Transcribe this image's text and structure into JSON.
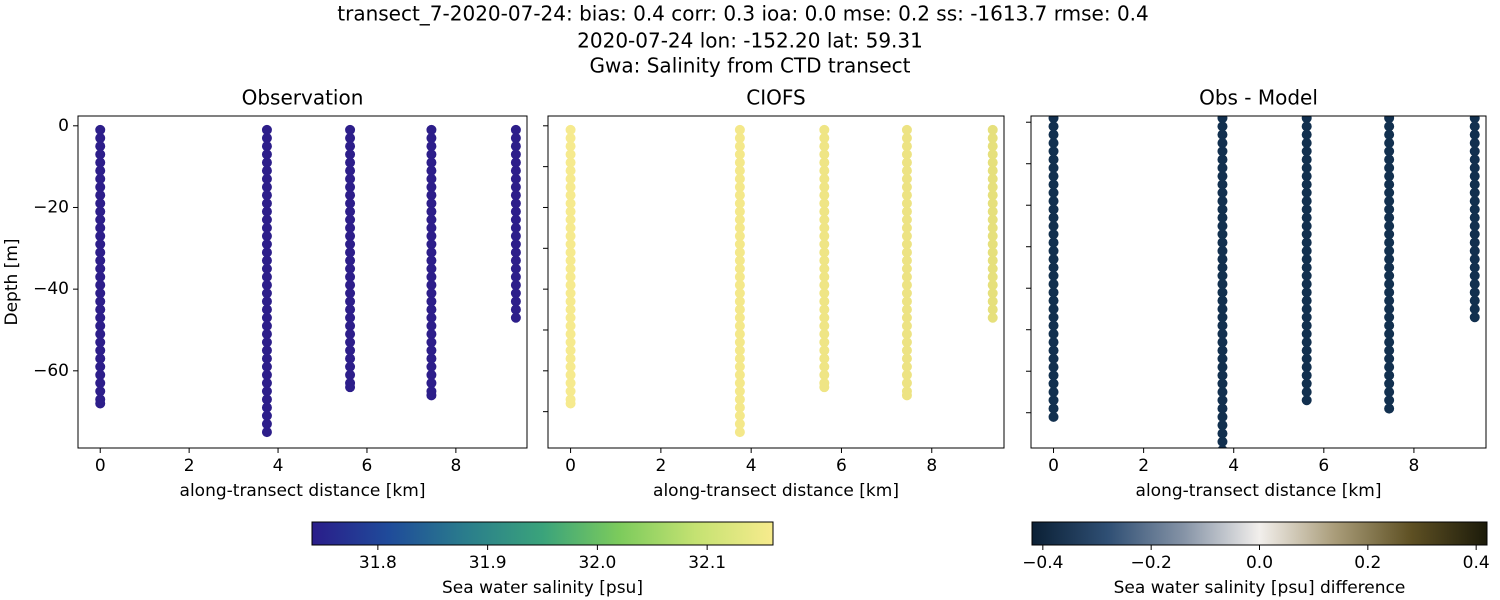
{
  "title": [
    "transect_7-2020-07-24: bias: 0.4  corr: 0.3  ioa: 0.0  mse: 0.2  ss: -1613.7  rmse: 0.4",
    "2020-07-24 lon: -152.20 lat: 59.31",
    "Gwa: Salinity from CTD transect"
  ],
  "chart_data": [
    {
      "type": "scatter",
      "title": "Observation",
      "xlabel": "along-transect distance [km]",
      "ylabel": "Depth [m]",
      "xlim": [
        -0.5,
        9.6
      ],
      "ylim": [
        -78.9,
        2.4
      ],
      "xticks": [
        0,
        2,
        4,
        6,
        8
      ],
      "yticks": [
        0,
        {
          "value": -20,
          "label": "−20"
        },
        {
          "value": -40,
          "label": "−40"
        },
        {
          "value": -60,
          "label": "−60"
        }
      ],
      "show_ytick_labels": true,
      "stations": [
        {
          "x": 0,
          "color": "#2d1e8a",
          "depth": [
            -1,
            -3,
            -5,
            -7,
            -9,
            -11,
            -13,
            -15,
            -17,
            -19,
            -21,
            -23,
            -25,
            -27,
            -29,
            -31,
            -33,
            -35,
            -37,
            -39,
            -41,
            -43,
            -45,
            -47,
            -49,
            -51,
            -53,
            -55,
            -57,
            -59,
            -61,
            -63,
            -65,
            -67,
            -68
          ]
        },
        {
          "x": 3.75,
          "color": "#2d1e8a",
          "depth": [
            -1,
            -3,
            -5,
            -7,
            -9,
            -11,
            -13,
            -15,
            -17,
            -19,
            -21,
            -23,
            -25,
            -27,
            -29,
            -31,
            -33,
            -35,
            -37,
            -39,
            -41,
            -43,
            -45,
            -47,
            -49,
            -51,
            -53,
            -55,
            -57,
            -59,
            -61,
            -63,
            -65,
            -67,
            -69,
            -71,
            -73,
            -75
          ]
        },
        {
          "x": 5.62,
          "color": "#2d1e8a",
          "depth": [
            -1,
            -3,
            -5,
            -7,
            -9,
            -11,
            -13,
            -15,
            -17,
            -19,
            -21,
            -23,
            -25,
            -27,
            -29,
            -31,
            -33,
            -35,
            -37,
            -39,
            -41,
            -43,
            -45,
            -47,
            -49,
            -51,
            -53,
            -55,
            -57,
            -59,
            -61,
            -63,
            -64
          ]
        },
        {
          "x": 7.45,
          "color": "#2d1e8a",
          "depth": [
            -1,
            -3,
            -5,
            -7,
            -9,
            -11,
            -13,
            -15,
            -17,
            -19,
            -21,
            -23,
            -25,
            -27,
            -29,
            -31,
            -33,
            -35,
            -37,
            -39,
            -41,
            -43,
            -45,
            -47,
            -49,
            -51,
            -53,
            -55,
            -57,
            -59,
            -61,
            -63,
            -65,
            -66
          ]
        },
        {
          "x": 9.35,
          "color": "#2d1e8a",
          "depth": [
            -1,
            -3,
            -5,
            -7,
            -9,
            -11,
            -13,
            -15,
            -17,
            -19,
            -21,
            -23,
            -25,
            -27,
            -29,
            -31,
            -33,
            -35,
            -37,
            -39,
            -41,
            -43,
            -45,
            -47
          ]
        }
      ]
    },
    {
      "type": "scatter",
      "title": "CIOFS",
      "xlabel": "along-transect distance [km]",
      "xlim": [
        -0.5,
        9.6
      ],
      "ylim": [
        -78.9,
        2.4
      ],
      "xticks": [
        0,
        2,
        4,
        6,
        8
      ],
      "yticks": [
        0,
        -10,
        -20,
        -30,
        -40,
        -50,
        -60,
        -70
      ],
      "show_ytick_labels": false,
      "stations": [
        {
          "x": 0,
          "color": "#f6ea8e",
          "depth": [
            -1,
            -3,
            -5,
            -7,
            -9,
            -11,
            -13,
            -15,
            -17,
            -19,
            -21,
            -23,
            -25,
            -27,
            -29,
            -31,
            -33,
            -35,
            -37,
            -39,
            -41,
            -43,
            -45,
            -47,
            -49,
            -51,
            -53,
            -55,
            -57,
            -59,
            -61,
            -63,
            -65,
            -67,
            -68
          ]
        },
        {
          "x": 3.75,
          "color": "#f4e88a",
          "depth": [
            -1,
            -3,
            -5,
            -7,
            -9,
            -11,
            -13,
            -15,
            -17,
            -19,
            -21,
            -23,
            -25,
            -27,
            -29,
            -31,
            -33,
            -35,
            -37,
            -39,
            -41,
            -43,
            -45,
            -47,
            -49,
            -51,
            -53,
            -55,
            -57,
            -59,
            -61,
            -63,
            -65,
            -67,
            -69,
            -71,
            -73,
            -75
          ]
        },
        {
          "x": 5.62,
          "color": "#efe585",
          "depth": [
            -1,
            -3,
            -5,
            -7,
            -9,
            -11,
            -13,
            -15,
            -17,
            -19,
            -21,
            -23,
            -25,
            -27,
            -29,
            -31,
            -33,
            -35,
            -37,
            -39,
            -41,
            -43,
            -45,
            -47,
            -49,
            -51,
            -53,
            -55,
            -57,
            -59,
            -61,
            -63,
            -64
          ]
        },
        {
          "x": 7.45,
          "color": "#ede383",
          "depth": [
            -1,
            -3,
            -5,
            -7,
            -9,
            -11,
            -13,
            -15,
            -17,
            -19,
            -21,
            -23,
            -25,
            -27,
            -29,
            -31,
            -33,
            -35,
            -37,
            -39,
            -41,
            -43,
            -45,
            -47,
            -49,
            -51,
            -53,
            -55,
            -57,
            -59,
            -61,
            -63,
            -65,
            -66
          ]
        },
        {
          "x": 9.35,
          "color": "#e6e07c",
          "depth": [
            -1,
            -3,
            -5,
            -7,
            -9,
            -11,
            -13,
            -15,
            -17,
            -19,
            -21,
            -23,
            -25,
            -27,
            -29,
            -31,
            -33,
            -35,
            -37,
            -39,
            -41,
            -43,
            -45,
            -47
          ]
        }
      ]
    },
    {
      "type": "scatter",
      "title": "Obs - Model",
      "xlabel": "along-transect distance [km]",
      "xlim": [
        -0.5,
        9.6
      ],
      "ylim": [
        -78.5,
        1.5
      ],
      "xticks": [
        0,
        2,
        4,
        6,
        8
      ],
      "yticks": [
        0,
        -10,
        -20,
        -30,
        -40,
        -50,
        -60,
        -70
      ],
      "show_ytick_labels": false,
      "stations": [
        {
          "x": 0,
          "color": "#12304f",
          "depth": [
            1,
            -1,
            -3,
            -5,
            -7,
            -9,
            -11,
            -13,
            -15,
            -17,
            -19,
            -21,
            -23,
            -25,
            -27,
            -29,
            -31,
            -33,
            -35,
            -37,
            -39,
            -41,
            -43,
            -45,
            -47,
            -49,
            -51,
            -53,
            -55,
            -57,
            -59,
            -61,
            -63,
            -65,
            -67,
            -69,
            -71
          ]
        },
        {
          "x": 3.75,
          "color": "#12304f",
          "depth": [
            1,
            -1,
            -3,
            -5,
            -7,
            -9,
            -11,
            -13,
            -15,
            -17,
            -19,
            -21,
            -23,
            -25,
            -27,
            -29,
            -31,
            -33,
            -35,
            -37,
            -39,
            -41,
            -43,
            -45,
            -47,
            -49,
            -51,
            -53,
            -55,
            -57,
            -59,
            -61,
            -63,
            -65,
            -67,
            -69,
            -71,
            -73,
            -75,
            -77,
            -79
          ]
        },
        {
          "x": 5.62,
          "color": "#12304f",
          "depth": [
            1,
            -1,
            -3,
            -5,
            -7,
            -9,
            -11,
            -13,
            -15,
            -17,
            -19,
            -21,
            -23,
            -25,
            -27,
            -29,
            -31,
            -33,
            -35,
            -37,
            -39,
            -41,
            -43,
            -45,
            -47,
            -49,
            -51,
            -53,
            -55,
            -57,
            -59,
            -61,
            -63,
            -65,
            -67
          ]
        },
        {
          "x": 7.45,
          "color": "#12304f",
          "depth": [
            1,
            -1,
            -3,
            -5,
            -7,
            -9,
            -11,
            -13,
            -15,
            -17,
            -19,
            -21,
            -23,
            -25,
            -27,
            -29,
            -31,
            -33,
            -35,
            -37,
            -39,
            -41,
            -43,
            -45,
            -47,
            -49,
            -51,
            -53,
            -55,
            -57,
            -59,
            -61,
            -63,
            -65,
            -67,
            -69
          ]
        },
        {
          "x": 9.35,
          "color": "#12304f",
          "depth": [
            1,
            -1,
            -3,
            -5,
            -7,
            -9,
            -11,
            -13,
            -15,
            -17,
            -19,
            -21,
            -23,
            -25,
            -27,
            -29,
            -31,
            -33,
            -35,
            -37,
            -39,
            -41,
            -43,
            -45,
            -47
          ]
        }
      ]
    }
  ],
  "colorbars": [
    {
      "label": "Sea water salinity [psu]",
      "lim": [
        31.74,
        32.16
      ],
      "ticks": [
        31.8,
        31.9,
        {
          "value": 32,
          "label": "32.0"
        },
        32.1
      ],
      "colors": [
        "#2a1d8a",
        "#1f4b9a",
        "#2a7d8c",
        "#3aa37b",
        "#7ccb5c",
        "#c5e272",
        "#f7eb8d"
      ]
    },
    {
      "label": "Sea water salinity [psu] difference",
      "lim": [
        -0.42,
        0.42
      ],
      "ticks": [
        {
          "value": -0.4,
          "label": "−0.4"
        },
        {
          "value": -0.2,
          "label": "−0.2"
        },
        {
          "value": 0,
          "label": "0.0"
        },
        0.2,
        0.4
      ],
      "colors": [
        "#0b2035",
        "#2f4f74",
        "#8593a6",
        "#f2efec",
        "#a99c79",
        "#5e5023",
        "#1c1b0a"
      ]
    }
  ]
}
